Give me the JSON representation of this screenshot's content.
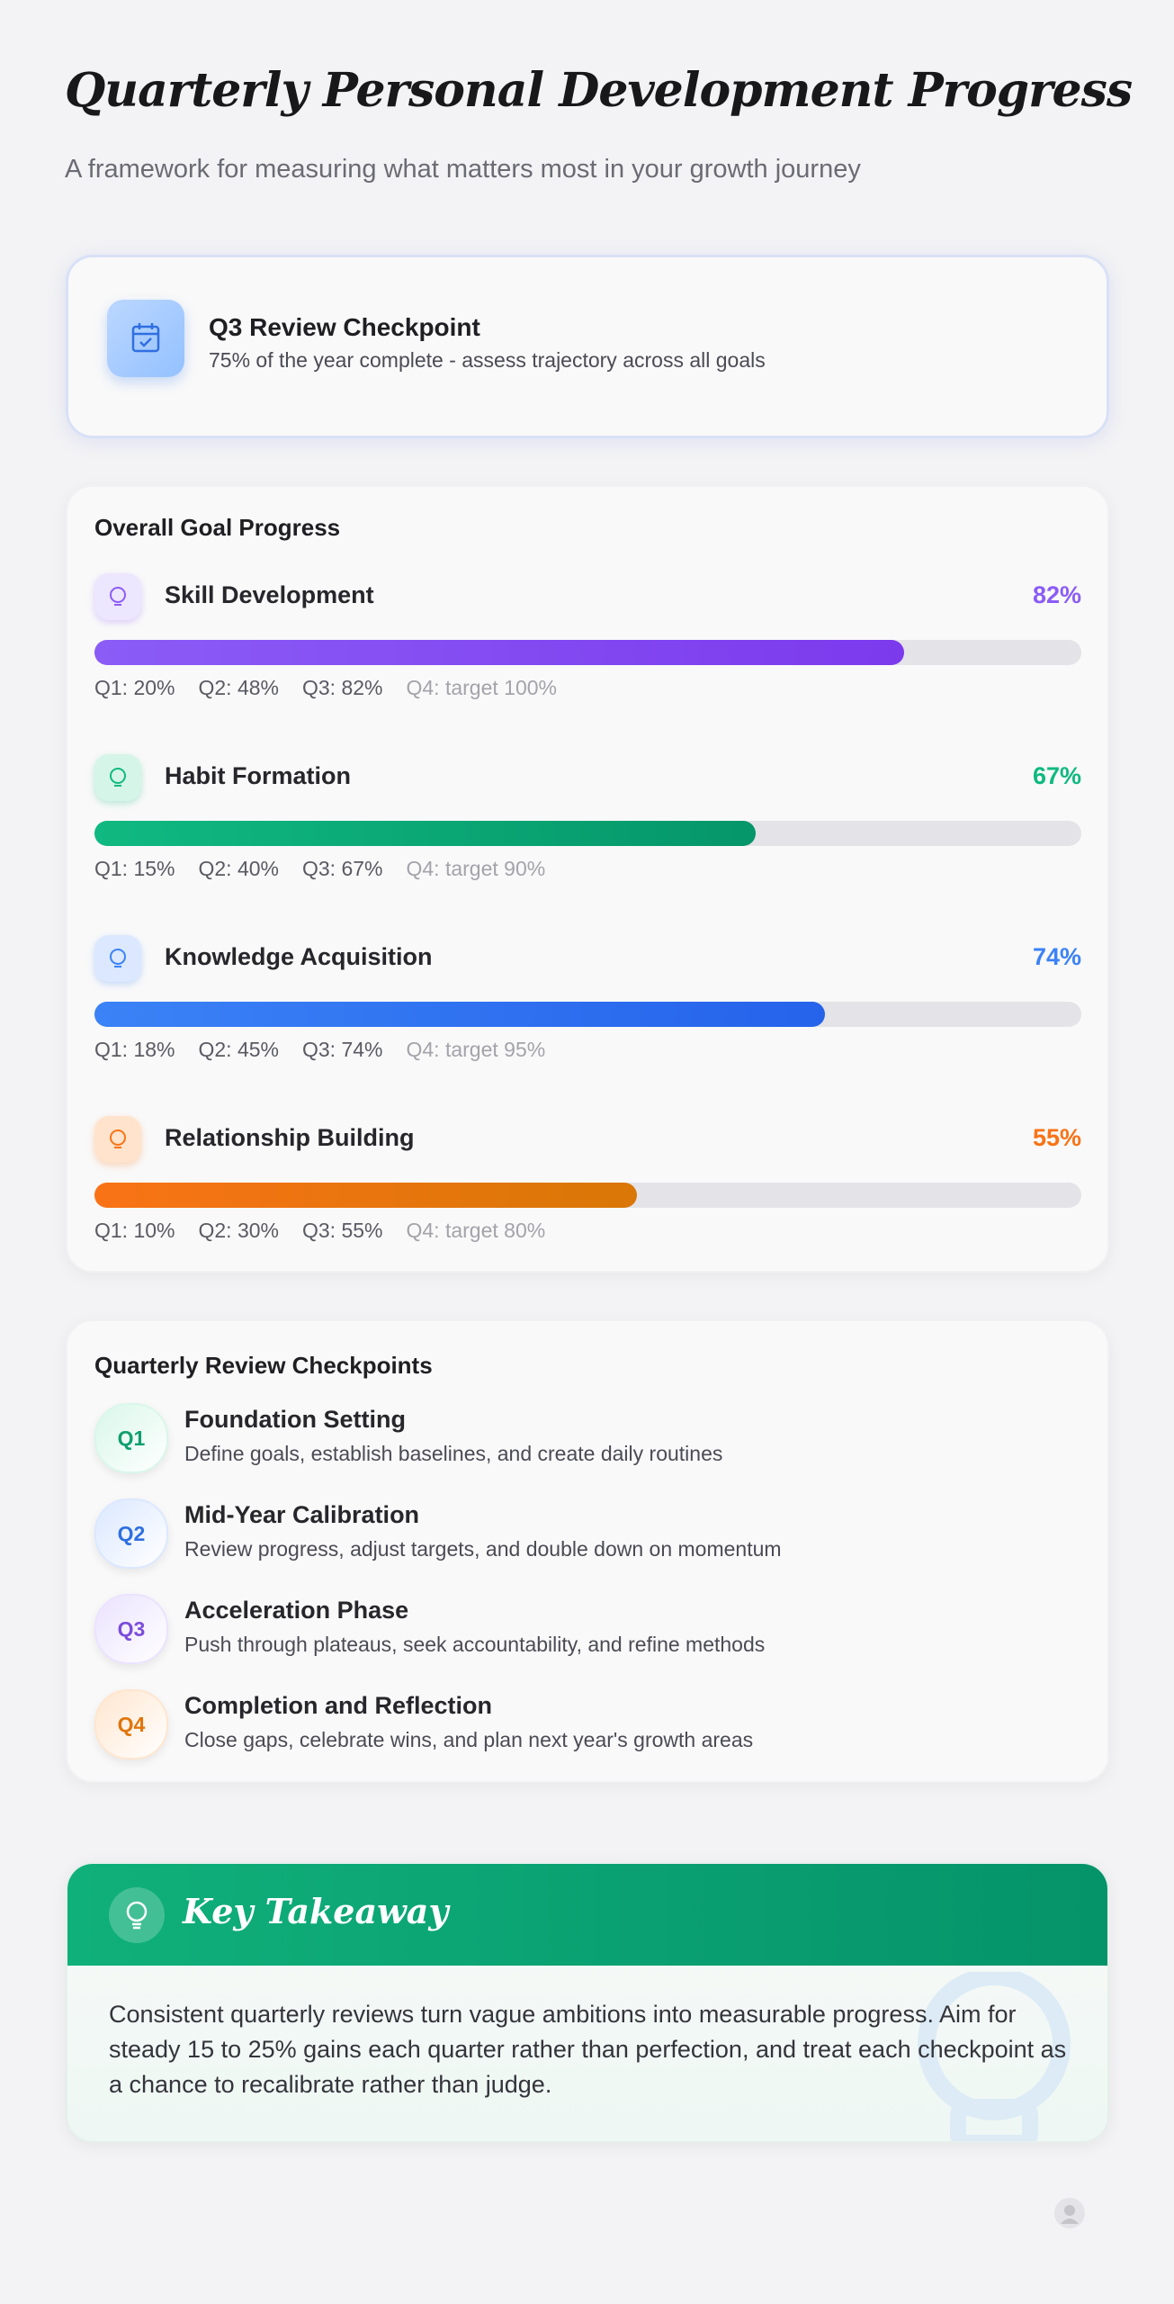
{
  "header": {
    "title": "Quarterly Personal Development Progress",
    "subtitle": "A framework for measuring what matters most in your growth journey"
  },
  "checkpoint": {
    "title": "Q3 Review Checkpoint",
    "description": "75% of the year complete - assess trajectory across all goals"
  },
  "progress": {
    "title": "Overall Goal Progress",
    "goals": [
      {
        "name": "Skill Development",
        "percent": 82,
        "percent_label": "82%",
        "color": "#8b5cf6",
        "quarters": [
          "Q1: 20%",
          "Q2: 48%",
          "Q3: 82%",
          "Q4: target 100%"
        ]
      },
      {
        "name": "Habit Formation",
        "percent": 67,
        "percent_label": "67%",
        "color": "#10b981",
        "quarters": [
          "Q1: 15%",
          "Q2: 40%",
          "Q3: 67%",
          "Q4: target 90%"
        ]
      },
      {
        "name": "Knowledge Acquisition",
        "percent": 74,
        "percent_label": "74%",
        "color": "#3b82f6",
        "quarters": [
          "Q1: 18%",
          "Q2: 45%",
          "Q3: 74%",
          "Q4: target 95%"
        ]
      },
      {
        "name": "Relationship Building",
        "percent": 55,
        "percent_label": "55%",
        "color": "#f97316",
        "quarters": [
          "Q1: 10%",
          "Q2: 30%",
          "Q3: 55%",
          "Q4: target 80%"
        ]
      }
    ]
  },
  "review": {
    "title": "Quarterly Review Checkpoints",
    "items": [
      {
        "badge": "Q1",
        "title": "Foundation Setting",
        "description": "Define goals, establish baselines, and create daily routines"
      },
      {
        "badge": "Q2",
        "title": "Mid-Year Calibration",
        "description": "Review progress, adjust targets, and double down on momentum"
      },
      {
        "badge": "Q3",
        "title": "Acceleration Phase",
        "description": "Push through plateaus, seek accountability, and refine methods"
      },
      {
        "badge": "Q4",
        "title": "Completion and Reflection",
        "description": "Close gaps, celebrate wins, and plan next year's growth areas"
      }
    ]
  },
  "takeaway": {
    "title": "Key Takeaway",
    "text": "Consistent quarterly reviews turn vague ambitions into measurable progress. Aim for steady 15 to 25% gains each quarter rather than perfection, and treat each checkpoint as a chance to recalibrate rather than judge."
  }
}
